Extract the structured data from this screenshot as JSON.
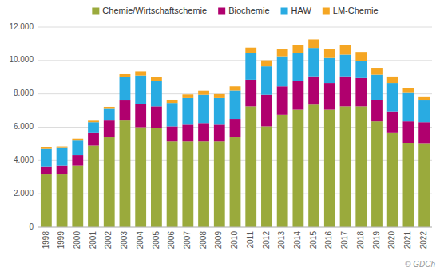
{
  "chart_data": {
    "type": "bar",
    "stacked": true,
    "categories": [
      "1998",
      "1999",
      "2000",
      "2001",
      "2002",
      "2003",
      "2004",
      "2005",
      "2006",
      "2007",
      "2008",
      "2009",
      "2010",
      "2011",
      "2012",
      "2013",
      "2014",
      "2015",
      "2016",
      "2017",
      "2018",
      "2019",
      "2020",
      "2021",
      "2022"
    ],
    "series": [
      {
        "name": "Chemie/Wirtschaftschemie",
        "color": "#9aaa3c",
        "values": [
          3200,
          3200,
          3700,
          4900,
          5400,
          6400,
          6000,
          5950,
          5150,
          5150,
          5150,
          5150,
          5400,
          7250,
          6050,
          6750,
          7050,
          7350,
          7050,
          7250,
          7250,
          6350,
          5650,
          5050,
          5000
        ]
      },
      {
        "name": "Biochemie",
        "color": "#b0006e",
        "values": [
          450,
          500,
          600,
          750,
          1000,
          1200,
          1400,
          1300,
          900,
          1000,
          1100,
          1000,
          1100,
          1600,
          1900,
          1700,
          1700,
          1700,
          1600,
          1800,
          1700,
          1300,
          1300,
          1300,
          1300
        ]
      },
      {
        "name": "HAW",
        "color": "#29abe2",
        "values": [
          1050,
          1050,
          900,
          650,
          700,
          1400,
          1700,
          1500,
          1400,
          1600,
          1700,
          1600,
          1700,
          1600,
          1700,
          1800,
          1700,
          1700,
          1500,
          1300,
          1000,
          1500,
          1700,
          1700,
          1300
        ]
      },
      {
        "name": "LM-Chemie",
        "color": "#f5a623",
        "values": [
          100,
          100,
          120,
          90,
          120,
          180,
          250,
          260,
          200,
          220,
          240,
          240,
          250,
          320,
          360,
          410,
          460,
          510,
          510,
          560,
          560,
          410,
          390,
          310,
          200
        ]
      }
    ],
    "ylim": [
      0,
      12000
    ],
    "yticks": [
      0,
      {
        "value": 2000,
        "label": "2.000"
      },
      {
        "value": 4000,
        "label": "4.000"
      },
      {
        "value": 6000,
        "label": "6.000"
      },
      {
        "value": 8000,
        "label": "8.000"
      },
      {
        "value": 10000,
        "label": "10.000"
      },
      {
        "value": 12000,
        "label": "12.000"
      }
    ],
    "grid": true,
    "legend": "top",
    "annotations": [
      "© GDCh"
    ]
  }
}
